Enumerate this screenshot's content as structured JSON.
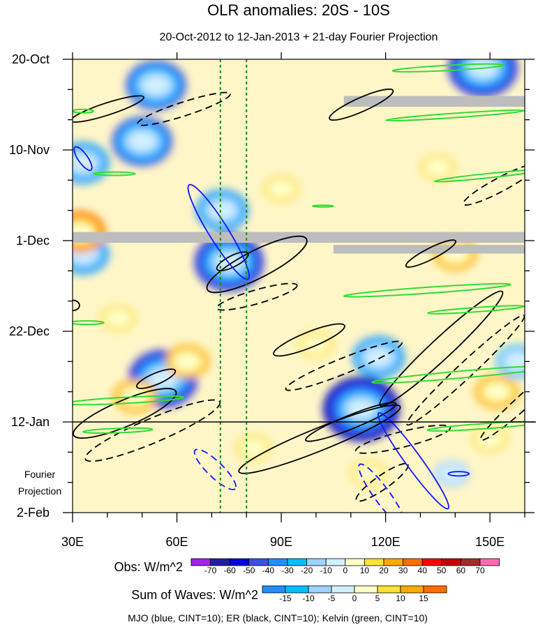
{
  "chart_data": {
    "type": "heatmap",
    "title": "OLR anomalies: 20S - 10S",
    "subtitle": "20-Oct-2012 to 12-Jan-2013 + 21-day Fourier Projection",
    "x_ticks": [
      {
        "value": 30,
        "label": "30E"
      },
      {
        "value": 60,
        "label": "60E"
      },
      {
        "value": 90,
        "label": "90E"
      },
      {
        "value": 120,
        "label": "120E"
      },
      {
        "value": 150,
        "label": "150E"
      }
    ],
    "xlim": [
      30,
      160
    ],
    "y_ticks": [
      {
        "day": 0,
        "label": "20-Oct"
      },
      {
        "day": 21,
        "label": "10-Nov"
      },
      {
        "day": 42,
        "label": "1-Dec"
      },
      {
        "day": 63,
        "label": "22-Dec"
      },
      {
        "day": 84,
        "label": "12-Jan"
      },
      {
        "day": 105,
        "label": "2-Feb"
      }
    ],
    "projection_label": [
      "Fourier",
      "Projection"
    ],
    "projection_start_day": 84,
    "vertical_lines_lon": [
      72.5,
      80
    ],
    "missing_bands": [
      {
        "lon": [
          108,
          160
        ],
        "day": [
          8.5,
          11
        ]
      },
      {
        "lon": [
          30,
          160
        ],
        "day": [
          40,
          42.5
        ]
      },
      {
        "lon": [
          105,
          160
        ],
        "day": [
          43,
          45
        ]
      }
    ],
    "obs_legend": {
      "label": "Obs: W/m^2",
      "levels": [
        "-70",
        "-60",
        "-50",
        "-40",
        "-30",
        "-20",
        "-10",
        "0",
        "10",
        "20",
        "30",
        "40",
        "50",
        "60",
        "70"
      ],
      "colors": [
        "#a020f0",
        "#1e1ea8",
        "#0000e0",
        "#3c50e6",
        "#1e90ff",
        "#00bfff",
        "#a0d2ff",
        "#d2f0ff",
        "#ffffc8",
        "#ffe132",
        "#ffaa00",
        "#ff6e00",
        "#ff0000",
        "#c80000",
        "#a52a2a",
        "#ff69b4"
      ]
    },
    "waves_legend": {
      "label": "Sum of Waves: W/m^2",
      "levels": [
        "-15",
        "-10",
        "-5",
        "0",
        "5",
        "10",
        "15"
      ],
      "colors": [
        "#1e90ff",
        "#00bfff",
        "#a0d2ff",
        "#d2f0ff",
        "#ffffc8",
        "#ffe132",
        "#ffaa00",
        "#ff6e00"
      ]
    },
    "contour_note": "MJO (blue, CINT=10); ER (black, CINT=10); Kelvin (green, CINT=10)",
    "contour_colors": {
      "MJO": "#1414ff",
      "ER": "#000000",
      "Kelvin": "#32dc32"
    },
    "strong_anomalies": [
      {
        "lon": 54,
        "day": 6,
        "value": -50
      },
      {
        "lon": 50,
        "day": 19,
        "value": -50
      },
      {
        "lon": 33,
        "day": 24,
        "value": -40
      },
      {
        "lon": 73,
        "day": 35,
        "value": -40
      },
      {
        "lon": 75,
        "day": 47,
        "value": -60
      },
      {
        "lon": 56,
        "day": 74,
        "value": -60
      },
      {
        "lon": 113,
        "day": 81,
        "value": -70
      },
      {
        "lon": 148,
        "day": 2,
        "value": -60
      },
      {
        "lon": 118,
        "day": 69,
        "value": -40
      },
      {
        "lon": 158,
        "day": 70,
        "value": -30
      },
      {
        "lon": 139,
        "day": 96,
        "value": -20
      },
      {
        "lon": 33,
        "day": 45,
        "value": -40
      },
      {
        "lon": 32,
        "day": 40,
        "value": 40
      },
      {
        "lon": 115,
        "day": 96,
        "value": 20
      },
      {
        "lon": 140,
        "day": 45,
        "value": 30
      },
      {
        "lon": 48,
        "day": 78,
        "value": 30
      },
      {
        "lon": 152,
        "day": 77,
        "value": 30
      },
      {
        "lon": 63,
        "day": 70,
        "value": 30
      },
      {
        "lon": 100,
        "day": 66,
        "value": 20
      },
      {
        "lon": 135,
        "day": 25,
        "value": 20
      },
      {
        "lon": 90,
        "day": 30,
        "value": 20
      },
      {
        "lon": 43,
        "day": 60,
        "value": 20
      },
      {
        "lon": 82,
        "day": 90,
        "value": 20
      },
      {
        "lon": 150,
        "day": 88,
        "value": 20
      }
    ],
    "contours": [
      {
        "wave": "ER",
        "dash": false,
        "lon": 40,
        "day": 11.5,
        "rx": 11,
        "ry": 1.4,
        "angle": -18
      },
      {
        "wave": "ER",
        "dash": true,
        "lon": 62,
        "day": 11.5,
        "rx": 14,
        "ry": 1.6,
        "angle": -18
      },
      {
        "wave": "ER",
        "dash": false,
        "lon": 113,
        "day": 10.5,
        "rx": 10,
        "ry": 1.6,
        "angle": -24
      },
      {
        "wave": "ER",
        "dash": false,
        "lon": 83,
        "day": 47.5,
        "rx": 16,
        "ry": 3.2,
        "angle": -27
      },
      {
        "wave": "ER",
        "dash": false,
        "lon": 76,
        "day": 46.8,
        "rx": 5,
        "ry": 1.3,
        "angle": -27
      },
      {
        "wave": "ER",
        "dash": true,
        "lon": 83,
        "day": 55,
        "rx": 12,
        "ry": 1.6,
        "angle": -16
      },
      {
        "wave": "ER",
        "dash": false,
        "lon": 98,
        "day": 65,
        "rx": 11,
        "ry": 1.8,
        "angle": -22
      },
      {
        "wave": "ER",
        "dash": true,
        "lon": 108,
        "day": 71,
        "rx": 18,
        "ry": 1.8,
        "angle": -22
      },
      {
        "wave": "ER",
        "dash": false,
        "lon": 45,
        "day": 82,
        "rx": 16,
        "ry": 3.0,
        "angle": -23
      },
      {
        "wave": "ER",
        "dash": false,
        "lon": 54,
        "day": 74,
        "rx": 6,
        "ry": 1.3,
        "angle": -23
      },
      {
        "wave": "ER",
        "dash": true,
        "lon": 53,
        "day": 86,
        "rx": 21,
        "ry": 2.8,
        "angle": -23
      },
      {
        "wave": "ER",
        "dash": false,
        "lon": 101,
        "day": 88,
        "rx": 25,
        "ry": 2.6,
        "angle": -22
      },
      {
        "wave": "ER",
        "dash": false,
        "lon": 110,
        "day": 84,
        "rx": 14,
        "ry": 1.6,
        "angle": -22
      },
      {
        "wave": "ER",
        "dash": false,
        "lon": 136,
        "day": 67,
        "rx": 24,
        "ry": 2.4,
        "angle": -43
      },
      {
        "wave": "ER",
        "dash": false,
        "lon": 133,
        "day": 45,
        "rx": 8,
        "ry": 1.3,
        "angle": -27
      },
      {
        "wave": "ER",
        "dash": true,
        "lon": 143,
        "day": 72,
        "rx": 23,
        "ry": 1.8,
        "angle": -43
      },
      {
        "wave": "ER",
        "dash": true,
        "lon": 125,
        "day": 88,
        "rx": 14,
        "ry": 1.8,
        "angle": -14
      },
      {
        "wave": "ER",
        "dash": true,
        "lon": 119,
        "day": 98,
        "rx": 9,
        "ry": 1.6,
        "angle": -35
      },
      {
        "wave": "ER",
        "dash": true,
        "lon": 153,
        "day": 29,
        "rx": 12,
        "ry": 1.6,
        "angle": -28
      },
      {
        "wave": "ER",
        "dash": true,
        "lon": 160,
        "day": 79,
        "rx": 17,
        "ry": 1.6,
        "angle": -42
      },
      {
        "wave": "ER",
        "dash": false,
        "lon": 30,
        "day": 57,
        "rx": 2,
        "ry": 1.2,
        "angle": 0
      },
      {
        "wave": "MJO",
        "dash": false,
        "lon": 72,
        "day": 40,
        "rx": 16,
        "ry": 2.2,
        "angle": 58
      },
      {
        "wave": "MJO",
        "dash": false,
        "lon": 33,
        "day": 23,
        "rx": 4,
        "ry": 1.1,
        "angle": 55
      },
      {
        "wave": "MJO",
        "dash": false,
        "lon": 128,
        "day": 93,
        "rx": 17,
        "ry": 1.8,
        "angle": 54
      },
      {
        "wave": "MJO",
        "dash": false,
        "lon": 141,
        "day": 96,
        "rx": 3,
        "ry": 0.5,
        "angle": 0
      },
      {
        "wave": "MJO",
        "dash": true,
        "lon": 71,
        "day": 95,
        "rx": 8,
        "ry": 1.8,
        "angle": 44
      },
      {
        "wave": "MJO",
        "dash": true,
        "lon": 119,
        "day": 101,
        "rx": 11,
        "ry": 1.8,
        "angle": 54
      },
      {
        "wave": "Kelvin",
        "dash": false,
        "lon": 138,
        "day": 2,
        "rx": 16,
        "ry": 0.6,
        "angle": -3
      },
      {
        "wave": "Kelvin",
        "dash": false,
        "lon": 140,
        "day": 13,
        "rx": 20,
        "ry": 0.5,
        "angle": -4
      },
      {
        "wave": "Kelvin",
        "dash": false,
        "lon": 33,
        "day": 12,
        "rx": 3,
        "ry": 0.4,
        "angle": 0
      },
      {
        "wave": "Kelvin",
        "dash": false,
        "lon": 42,
        "day": 26.5,
        "rx": 6,
        "ry": 0.4,
        "angle": 0
      },
      {
        "wave": "Kelvin",
        "dash": false,
        "lon": 149,
        "day": 27,
        "rx": 15,
        "ry": 0.5,
        "angle": -6
      },
      {
        "wave": "Kelvin",
        "dash": false,
        "lon": 102,
        "day": 34,
        "rx": 3,
        "ry": 0.2,
        "angle": 0
      },
      {
        "wave": "Kelvin",
        "dash": false,
        "lon": 132,
        "day": 53.5,
        "rx": 24,
        "ry": 0.7,
        "angle": -4
      },
      {
        "wave": "Kelvin",
        "dash": false,
        "lon": 146,
        "day": 58,
        "rx": 14,
        "ry": 0.5,
        "angle": -4
      },
      {
        "wave": "Kelvin",
        "dash": false,
        "lon": 34,
        "day": 61,
        "rx": 5,
        "ry": 0.4,
        "angle": 0
      },
      {
        "wave": "Kelvin",
        "dash": false,
        "lon": 142,
        "day": 73,
        "rx": 26,
        "ry": 0.8,
        "angle": -5
      },
      {
        "wave": "Kelvin",
        "dash": false,
        "lon": 45,
        "day": 79,
        "rx": 17,
        "ry": 0.7,
        "angle": -3
      },
      {
        "wave": "Kelvin",
        "dash": false,
        "lon": 43,
        "day": 86,
        "rx": 10,
        "ry": 0.5,
        "angle": -2
      },
      {
        "wave": "Kelvin",
        "dash": false,
        "lon": 148,
        "day": 85,
        "rx": 16,
        "ry": 0.6,
        "angle": -4
      }
    ]
  }
}
